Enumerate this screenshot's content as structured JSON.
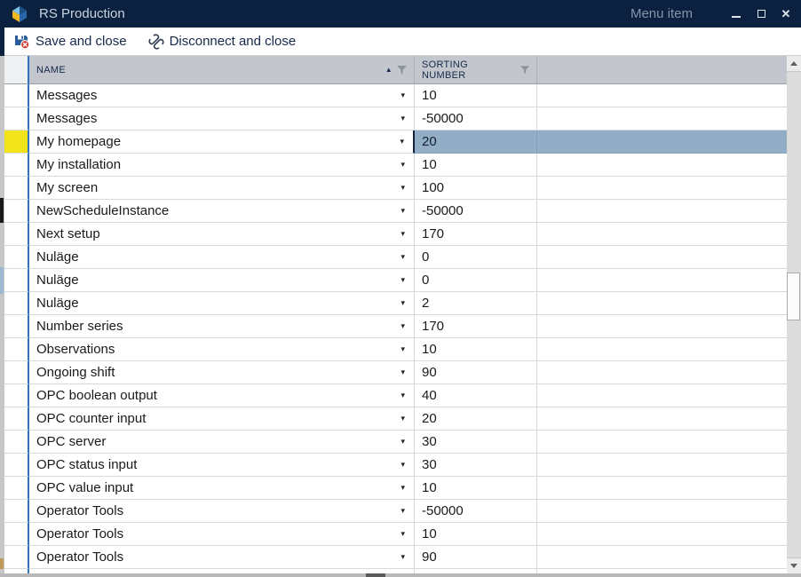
{
  "window": {
    "title": "RS Production",
    "menu_item_label": "Menu item"
  },
  "icons": {
    "close_glyph": "✕",
    "sort_ascending_glyph": "▲",
    "dropdown_glyph": "▾"
  },
  "toolbar": {
    "save_label": "Save and close",
    "disconnect_label": "Disconnect and close"
  },
  "table": {
    "columns": [
      {
        "label": "NAME",
        "sorted": "asc",
        "filter": true
      },
      {
        "label": "SORTING NUMBER",
        "sorted": null,
        "filter": true
      },
      {
        "label": "",
        "sorted": null,
        "filter": false
      }
    ],
    "selected_index": 2,
    "rows": [
      {
        "name": "Messages",
        "sorting_number": "10",
        "selected": false
      },
      {
        "name": "Messages",
        "sorting_number": "-50000",
        "selected": false
      },
      {
        "name": "My homepage",
        "sorting_number": "20",
        "selected": true
      },
      {
        "name": "My installation",
        "sorting_number": "10",
        "selected": false
      },
      {
        "name": "My screen",
        "sorting_number": "100",
        "selected": false
      },
      {
        "name": "NewScheduleInstance",
        "sorting_number": "-50000",
        "selected": false
      },
      {
        "name": "Next setup",
        "sorting_number": "170",
        "selected": false
      },
      {
        "name": "Nuläge",
        "sorting_number": "0",
        "selected": false
      },
      {
        "name": "Nuläge",
        "sorting_number": "0",
        "selected": false
      },
      {
        "name": "Nuläge",
        "sorting_number": "2",
        "selected": false
      },
      {
        "name": "Number series",
        "sorting_number": "170",
        "selected": false
      },
      {
        "name": "Observations",
        "sorting_number": "10",
        "selected": false
      },
      {
        "name": "Ongoing shift",
        "sorting_number": "90",
        "selected": false
      },
      {
        "name": "OPC boolean output",
        "sorting_number": "40",
        "selected": false
      },
      {
        "name": "OPC counter input",
        "sorting_number": "20",
        "selected": false
      },
      {
        "name": "OPC server",
        "sorting_number": "30",
        "selected": false
      },
      {
        "name": "OPC status input",
        "sorting_number": "30",
        "selected": false
      },
      {
        "name": "OPC value input",
        "sorting_number": "10",
        "selected": false
      },
      {
        "name": "Operator Tools",
        "sorting_number": "-50000",
        "selected": false
      },
      {
        "name": "Operator Tools",
        "sorting_number": "10",
        "selected": false
      },
      {
        "name": "Operator Tools",
        "sorting_number": "90",
        "selected": false
      }
    ]
  },
  "colors": {
    "titlebar_bg": "#0c2140",
    "header_bg": "#c3c7cd",
    "selection_blue": "#92aec7",
    "selection_yellow": "#f2e41a",
    "accent_line_blue": "#2e77c0"
  }
}
